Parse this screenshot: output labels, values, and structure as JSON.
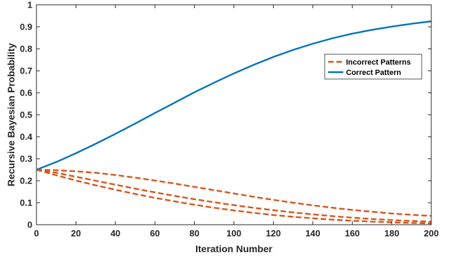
{
  "chart_data": {
    "type": "line",
    "xlabel": "Iteration Number",
    "ylabel": "Recursive Bayesian Probability",
    "xlim": [
      0,
      200
    ],
    "ylim": [
      0,
      1
    ],
    "xticks": [
      "0",
      "20",
      "40",
      "60",
      "80",
      "100",
      "120",
      "140",
      "160",
      "180",
      "200"
    ],
    "yticks": [
      "0",
      "0.1",
      "0.2",
      "0.3",
      "0.4",
      "0.5",
      "0.6",
      "0.7",
      "0.8",
      "0.9",
      "1"
    ],
    "grid": false,
    "legend_position": "top-right",
    "legend": [
      "Incorrect Patterns",
      "Correct Pattern"
    ],
    "series": [
      {
        "name": "Correct Pattern",
        "style": "solid",
        "color": "#0072bd",
        "x": [
          0,
          10,
          20,
          30,
          40,
          50,
          60,
          70,
          80,
          90,
          100,
          110,
          120,
          130,
          140,
          150,
          160,
          170,
          180,
          190,
          200
        ],
        "y": [
          0.25,
          0.285,
          0.325,
          0.368,
          0.413,
          0.46,
          0.508,
          0.555,
          0.602,
          0.646,
          0.688,
          0.727,
          0.763,
          0.795,
          0.823,
          0.848,
          0.869,
          0.886,
          0.901,
          0.914,
          0.925
        ]
      },
      {
        "name": "Incorrect Patterns",
        "style": "dashed",
        "color": "#d95319",
        "x": [
          0,
          10,
          20,
          30,
          40,
          50,
          60,
          70,
          80,
          90,
          100,
          110,
          120,
          130,
          140,
          150,
          160,
          170,
          180,
          190,
          200
        ],
        "y": [
          0.25,
          0.248,
          0.243,
          0.236,
          0.226,
          0.214,
          0.201,
          0.187,
          0.172,
          0.157,
          0.142,
          0.127,
          0.113,
          0.1,
          0.088,
          0.077,
          0.067,
          0.059,
          0.051,
          0.045,
          0.04
        ]
      },
      {
        "name": "Incorrect Patterns",
        "style": "dashed",
        "color": "#d95319",
        "x": [
          0,
          10,
          20,
          30,
          40,
          50,
          60,
          70,
          80,
          90,
          100,
          110,
          120,
          130,
          140,
          150,
          160,
          170,
          180,
          190,
          200
        ],
        "y": [
          0.25,
          0.236,
          0.218,
          0.2,
          0.182,
          0.164,
          0.147,
          0.131,
          0.116,
          0.102,
          0.089,
          0.077,
          0.066,
          0.056,
          0.047,
          0.039,
          0.032,
          0.026,
          0.021,
          0.017,
          0.014
        ]
      },
      {
        "name": "Incorrect Patterns",
        "style": "dashed",
        "color": "#d95319",
        "x": [
          0,
          10,
          20,
          30,
          40,
          50,
          60,
          70,
          80,
          90,
          100,
          110,
          120,
          130,
          140,
          150,
          160,
          170,
          180,
          190,
          200
        ],
        "y": [
          0.25,
          0.225,
          0.201,
          0.179,
          0.159,
          0.14,
          0.122,
          0.106,
          0.091,
          0.077,
          0.065,
          0.054,
          0.044,
          0.036,
          0.029,
          0.023,
          0.018,
          0.014,
          0.011,
          0.008,
          0.006
        ]
      }
    ]
  }
}
